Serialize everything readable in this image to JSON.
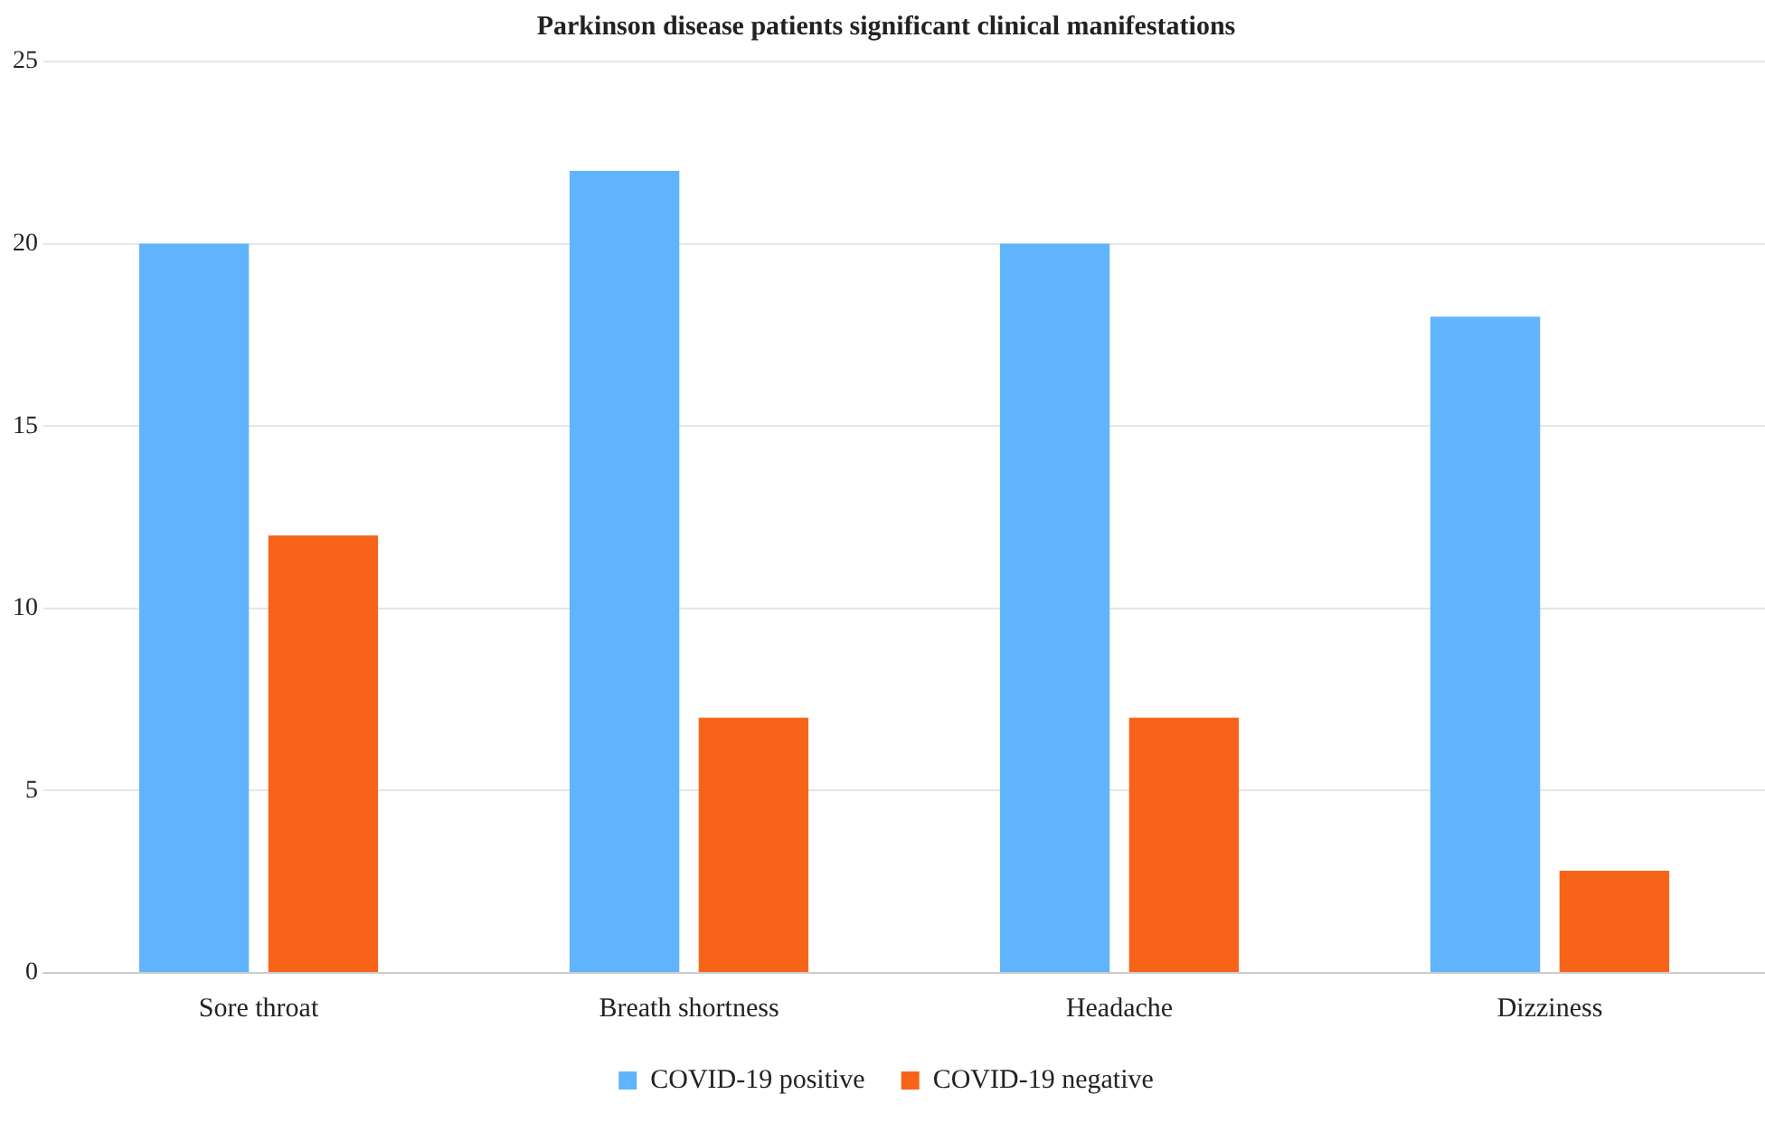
{
  "chart_data": {
    "type": "bar",
    "title": "Parkinson disease patients significant clinical manifestations",
    "categories": [
      "Sore throat",
      "Breath shortness",
      "Headache",
      "Dizziness"
    ],
    "series": [
      {
        "name": "COVID-19 positive",
        "color": "#60b4fc",
        "values": [
          20,
          22,
          20,
          18
        ]
      },
      {
        "name": "COVID-19 negative",
        "color": "#f76419",
        "values": [
          12,
          7,
          7,
          2.8
        ]
      }
    ],
    "ylim": [
      0,
      25
    ],
    "yticks": [
      0,
      5,
      10,
      15,
      20,
      25
    ],
    "grid": "y",
    "legend": "bottom"
  }
}
